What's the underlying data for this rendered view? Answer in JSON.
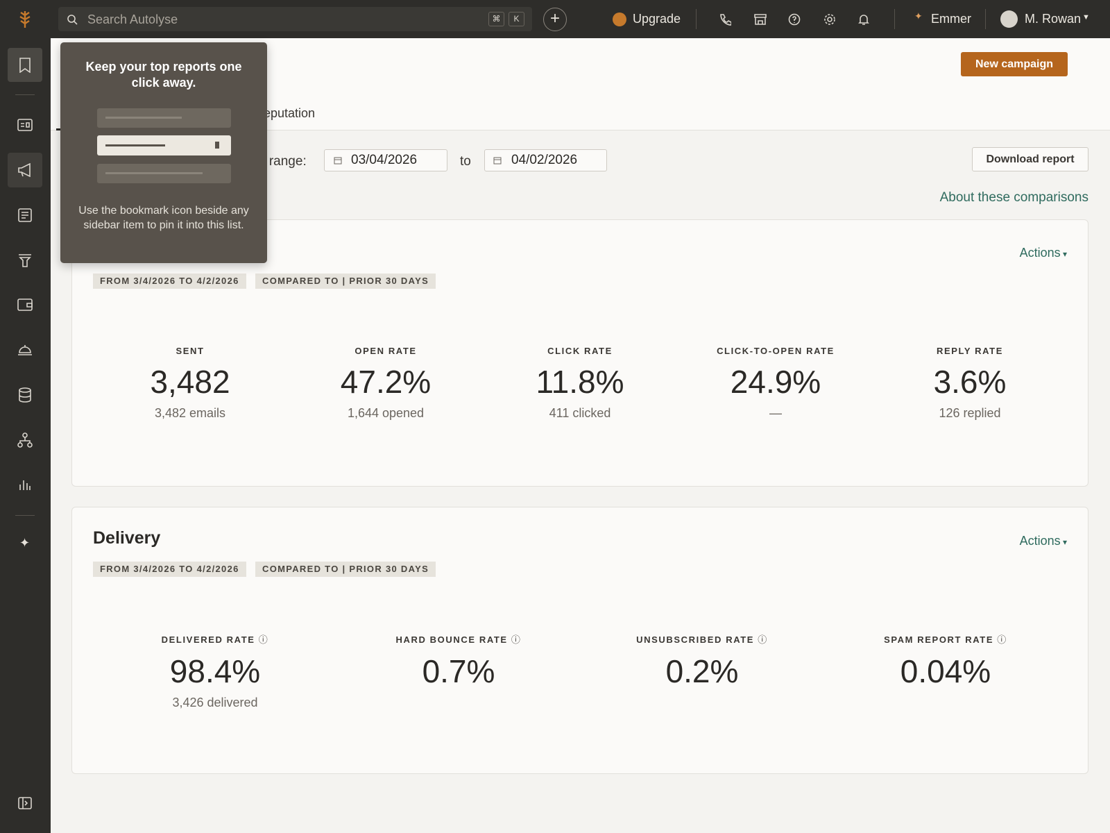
{
  "topbar": {
    "search_placeholder": "Search Autolyse",
    "shortcut_keys": [
      "⌘",
      "K"
    ],
    "upgrade": "Upgrade",
    "workspace": "Emmer",
    "user": "M. Rowan"
  },
  "popover": {
    "title": "Keep your top reports one click away.",
    "body": "Use the bookmark icon beside any sidebar item to pin it into this list."
  },
  "header": {
    "new_campaign": "New campaign",
    "tab": "eputation"
  },
  "filters": {
    "date_range_label": "e range:",
    "start": "03/04/2026",
    "to": "to",
    "end": "04/02/2026",
    "download": "Download report",
    "about": "About these comparisons"
  },
  "engagement": {
    "actions": "Actions",
    "badges": [
      "FROM 3/4/2026 TO 4/2/2026",
      "COMPARED TO | PRIOR 30 DAYS"
    ],
    "metrics": [
      {
        "label": "SENT",
        "value": "3,482",
        "detail": "3,482 emails"
      },
      {
        "label": "OPEN RATE",
        "value": "47.2%",
        "detail": "1,644 opened"
      },
      {
        "label": "CLICK RATE",
        "value": "11.8%",
        "detail": "411 clicked"
      },
      {
        "label": "CLICK-TO-OPEN RATE",
        "value": "24.9%",
        "detail": "—"
      },
      {
        "label": "REPLY RATE",
        "value": "3.6%",
        "detail": "126 replied"
      }
    ]
  },
  "delivery": {
    "title": "Delivery",
    "actions": "Actions",
    "badges": [
      "FROM 3/4/2026 TO 4/2/2026",
      "COMPARED TO | PRIOR 30 DAYS"
    ],
    "metrics": [
      {
        "label": "DELIVERED RATE",
        "value": "98.4%",
        "detail": "3,426 delivered"
      },
      {
        "label": "HARD BOUNCE RATE",
        "value": "0.7%"
      },
      {
        "label": "UNSUBSCRIBED RATE",
        "value": "0.2%"
      },
      {
        "label": "SPAM REPORT RATE",
        "value": "0.04%"
      }
    ]
  }
}
